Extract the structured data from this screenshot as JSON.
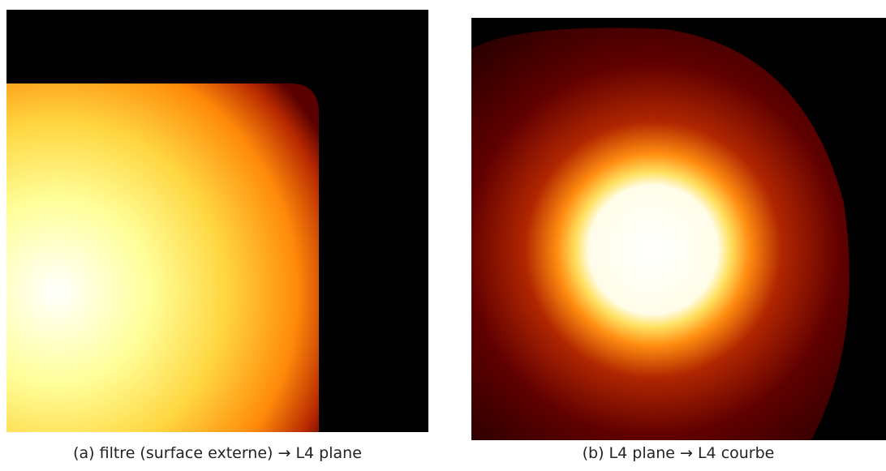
{
  "figure": {
    "panels": [
      {
        "caption": "(a) filtre (surface externe) → L4 plane"
      },
      {
        "caption": "(b) L4 plane → L4 courbe"
      }
    ]
  }
}
